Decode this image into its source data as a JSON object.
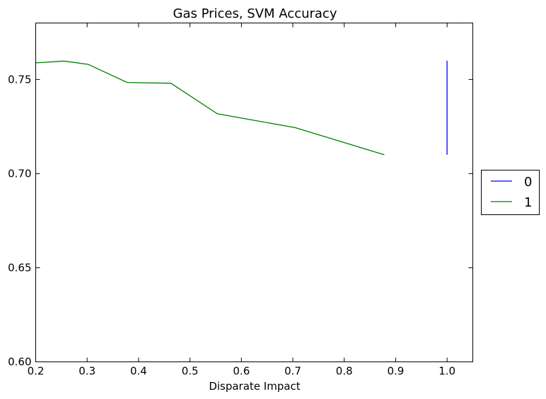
{
  "chart_data": {
    "type": "line",
    "title": "Gas Prices, SVM Accuracy",
    "xlabel": "Disparate Impact",
    "ylabel": "",
    "xlim": [
      0.2,
      1.05
    ],
    "ylim": [
      0.6,
      0.78
    ],
    "xticks": [
      0.2,
      0.3,
      0.4,
      0.5,
      0.6,
      0.7,
      0.8,
      0.9,
      1.0
    ],
    "xtick_labels": [
      "0.2",
      "0.3",
      "0.4",
      "0.5",
      "0.6",
      "0.7",
      "0.8",
      "0.9",
      "1.0"
    ],
    "yticks": [
      0.6,
      0.65,
      0.7,
      0.75
    ],
    "ytick_labels": [
      "0.60",
      "0.65",
      "0.70",
      "0.75"
    ],
    "grid": false,
    "legend_position": "outside right",
    "series": [
      {
        "name": "0",
        "color": "#0000ff",
        "x": [
          1.0,
          1.0
        ],
        "y": [
          0.71,
          0.76
        ]
      },
      {
        "name": "1",
        "color": "#008000",
        "x": [
          0.2,
          0.255,
          0.302,
          0.378,
          0.463,
          0.553,
          0.705,
          0.878
        ],
        "y": [
          0.7588,
          0.7598,
          0.758,
          0.7484,
          0.748,
          0.7318,
          0.7244,
          0.71
        ]
      }
    ]
  }
}
